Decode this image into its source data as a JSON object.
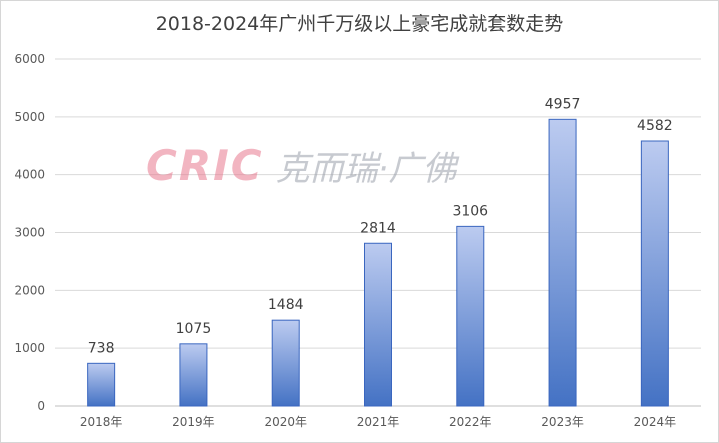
{
  "chart_data": {
    "type": "bar",
    "title": "2018-2024年广州千万级以上豪宅成就套数走势",
    "categories": [
      "2018年",
      "2019年",
      "2020年",
      "2021年",
      "2022年",
      "2023年",
      "2024年"
    ],
    "values": [
      738,
      1075,
      1484,
      2814,
      3106,
      4957,
      4582
    ],
    "ylim": [
      0,
      6000
    ],
    "yticks": [
      0,
      1000,
      2000,
      3000,
      4000,
      5000,
      6000
    ],
    "grid": true,
    "data_labels": true,
    "bar_gradient": [
      "#bccbf0",
      "#4472c4"
    ],
    "bar_border": "#3a66bf"
  },
  "watermark": {
    "brand": "CRIC",
    "text": "克而瑞·广佛"
  }
}
